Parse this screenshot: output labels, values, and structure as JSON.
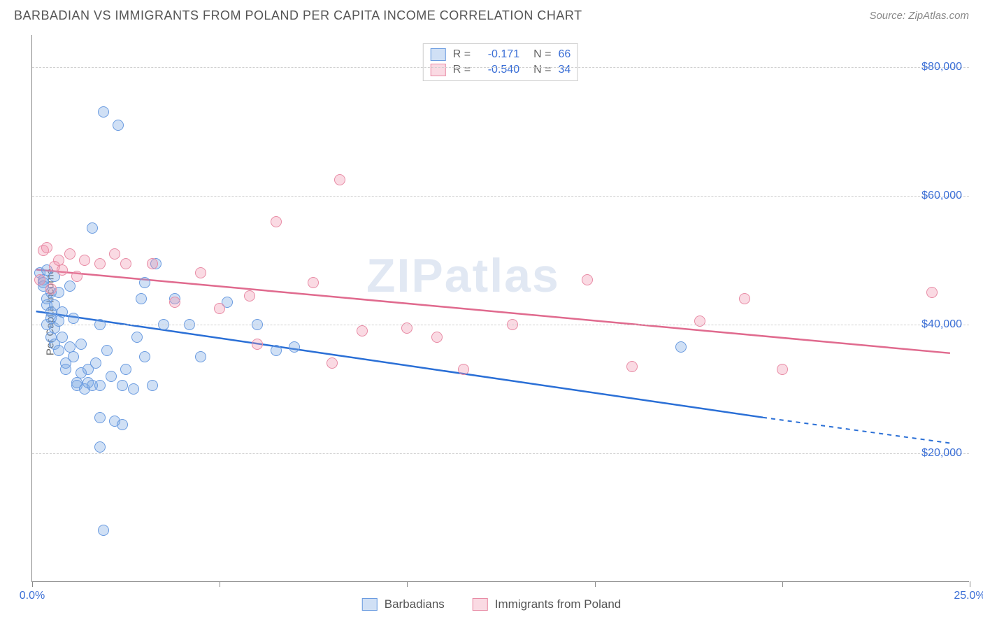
{
  "title": "BARBADIAN VS IMMIGRANTS FROM POLAND PER CAPITA INCOME CORRELATION CHART",
  "source": "Source: ZipAtlas.com",
  "watermark": "ZIPatlas",
  "y_axis_label": "Per Capita Income",
  "chart": {
    "type": "scatter",
    "xlim": [
      0,
      25
    ],
    "ylim": [
      0,
      85000
    ],
    "x_ticks": [
      0,
      5,
      10,
      15,
      20,
      25
    ],
    "x_tick_labels": {
      "0": "0.0%",
      "25": "25.0%"
    },
    "y_gridlines": [
      20000,
      40000,
      60000,
      80000
    ],
    "y_tick_labels": [
      "$20,000",
      "$40,000",
      "$60,000",
      "$80,000"
    ],
    "background_color": "#ffffff",
    "grid_color": "#d0d0d0",
    "axis_color": "#888888",
    "tick_label_color": "#3b6fd6",
    "point_radius": 8,
    "series": [
      {
        "name": "Barbadians",
        "fill": "rgba(120,165,225,0.35)",
        "stroke": "#6a9be0",
        "trend_color": "#2a6fd6",
        "R": "-0.171",
        "N": "66",
        "trend": {
          "x1": 0.1,
          "y1": 42000,
          "x2": 19.5,
          "y2": 25500,
          "dash_to_x": 24.5,
          "dash_to_y": 21500
        },
        "points": [
          [
            0.2,
            48000
          ],
          [
            0.3,
            47000
          ],
          [
            0.3,
            46500
          ],
          [
            0.3,
            46000
          ],
          [
            0.4,
            48500
          ],
          [
            0.4,
            44000
          ],
          [
            0.4,
            43000
          ],
          [
            0.4,
            40000
          ],
          [
            0.5,
            45000
          ],
          [
            0.5,
            42000
          ],
          [
            0.5,
            41000
          ],
          [
            0.5,
            38000
          ],
          [
            0.6,
            47500
          ],
          [
            0.6,
            43000
          ],
          [
            0.6,
            39500
          ],
          [
            0.6,
            37000
          ],
          [
            0.7,
            45000
          ],
          [
            0.7,
            40500
          ],
          [
            0.7,
            36000
          ],
          [
            0.8,
            42000
          ],
          [
            0.8,
            38000
          ],
          [
            0.9,
            34000
          ],
          [
            0.9,
            33000
          ],
          [
            1.0,
            36500
          ],
          [
            1.0,
            46000
          ],
          [
            1.1,
            41000
          ],
          [
            1.1,
            35000
          ],
          [
            1.2,
            31000
          ],
          [
            1.2,
            30500
          ],
          [
            1.3,
            37000
          ],
          [
            1.3,
            32500
          ],
          [
            1.4,
            30000
          ],
          [
            1.5,
            33000
          ],
          [
            1.5,
            31000
          ],
          [
            1.6,
            55000
          ],
          [
            1.6,
            30500
          ],
          [
            1.7,
            34000
          ],
          [
            1.8,
            40000
          ],
          [
            1.8,
            30500
          ],
          [
            1.8,
            25500
          ],
          [
            1.8,
            21000
          ],
          [
            1.9,
            8000
          ],
          [
            1.9,
            73000
          ],
          [
            2.0,
            36000
          ],
          [
            2.1,
            32000
          ],
          [
            2.2,
            25000
          ],
          [
            2.3,
            71000
          ],
          [
            2.4,
            30500
          ],
          [
            2.4,
            24500
          ],
          [
            2.5,
            33000
          ],
          [
            2.7,
            30000
          ],
          [
            2.8,
            38000
          ],
          [
            2.9,
            44000
          ],
          [
            3.0,
            46500
          ],
          [
            3.0,
            35000
          ],
          [
            3.2,
            30500
          ],
          [
            3.3,
            49500
          ],
          [
            3.5,
            40000
          ],
          [
            3.8,
            44000
          ],
          [
            4.2,
            40000
          ],
          [
            4.5,
            35000
          ],
          [
            5.2,
            43500
          ],
          [
            6.0,
            40000
          ],
          [
            6.5,
            36000
          ],
          [
            7.0,
            36500
          ],
          [
            17.3,
            36500
          ]
        ]
      },
      {
        "name": "Immigrants from Poland",
        "fill": "rgba(240,150,175,0.35)",
        "stroke": "#e88ba5",
        "trend_color": "#e06a8e",
        "R": "-0.540",
        "N": "34",
        "trend": {
          "x1": 0.1,
          "y1": 48500,
          "x2": 24.5,
          "y2": 35500,
          "dash_to_x": null,
          "dash_to_y": null
        },
        "points": [
          [
            0.2,
            47000
          ],
          [
            0.3,
            51500
          ],
          [
            0.4,
            52000
          ],
          [
            0.5,
            45500
          ],
          [
            0.6,
            49000
          ],
          [
            0.7,
            50000
          ],
          [
            0.8,
            48500
          ],
          [
            1.0,
            51000
          ],
          [
            1.2,
            47500
          ],
          [
            1.4,
            50000
          ],
          [
            1.8,
            49500
          ],
          [
            2.2,
            51000
          ],
          [
            2.5,
            49500
          ],
          [
            3.2,
            49500
          ],
          [
            3.8,
            43500
          ],
          [
            4.5,
            48000
          ],
          [
            5.0,
            42500
          ],
          [
            5.8,
            44500
          ],
          [
            6.5,
            56000
          ],
          [
            6.0,
            37000
          ],
          [
            7.5,
            46500
          ],
          [
            8.0,
            34000
          ],
          [
            8.2,
            62500
          ],
          [
            8.8,
            39000
          ],
          [
            10.0,
            39500
          ],
          [
            10.8,
            38000
          ],
          [
            11.5,
            33000
          ],
          [
            12.8,
            40000
          ],
          [
            14.8,
            47000
          ],
          [
            16.0,
            33500
          ],
          [
            17.8,
            40500
          ],
          [
            19.0,
            44000
          ],
          [
            20.0,
            33000
          ],
          [
            24.0,
            45000
          ]
        ]
      }
    ]
  },
  "stats_legend": {
    "R_label": "R =",
    "N_label": "N ="
  },
  "bottom_legend": {
    "items": [
      "Barbadians",
      "Immigrants from Poland"
    ]
  }
}
